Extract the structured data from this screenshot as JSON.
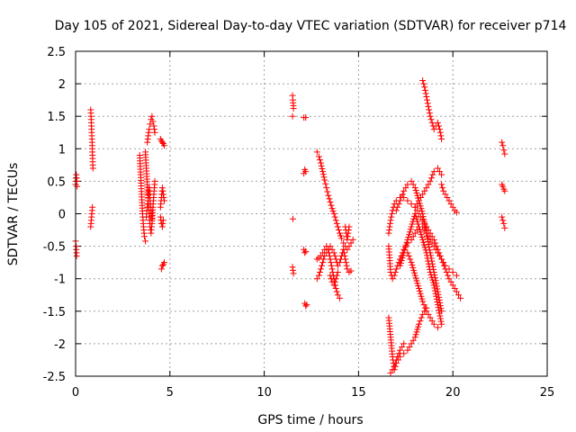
{
  "chart_data": {
    "type": "scatter",
    "title": "Day 105 of 2021, Sidereal Day-to-day VTEC variation (SDTVAR) for receiver p714",
    "xlabel": "GPS time / hours",
    "ylabel": "SDTVAR / TECUs",
    "xlim": [
      0,
      25
    ],
    "ylim": [
      -2.5,
      2.5
    ],
    "xticks": [
      0,
      5,
      10,
      15,
      20,
      25
    ],
    "yticks": [
      -2.5,
      -2,
      -1.5,
      -1,
      -0.5,
      0,
      0.5,
      1,
      1.5,
      2,
      2.5
    ],
    "grid": true,
    "marker": "+",
    "color": "#ff0000",
    "segments": [
      {
        "x": [
          0.0,
          0.02,
          0.04,
          0.06,
          0.08
        ],
        "y": [
          0.45,
          0.55,
          0.6,
          0.5,
          0.42
        ]
      },
      {
        "x": [
          0.0,
          0.03,
          0.06
        ],
        "y": [
          -0.42,
          -0.5,
          -0.65
        ]
      },
      {
        "x": [
          0.8,
          0.82,
          0.84,
          0.86,
          0.88,
          0.9,
          0.92
        ],
        "y": [
          1.6,
          1.5,
          1.35,
          1.2,
          1.05,
          0.85,
          0.7
        ]
      },
      {
        "x": [
          0.8,
          0.83,
          0.86,
          0.89
        ],
        "y": [
          -0.2,
          -0.1,
          0.0,
          0.1
        ]
      },
      {
        "x": [
          3.4,
          3.45,
          3.5,
          3.55,
          3.6,
          3.65,
          3.7
        ],
        "y": [
          0.9,
          0.6,
          0.3,
          0.0,
          -0.2,
          -0.35,
          -0.42
        ]
      },
      {
        "x": [
          3.7,
          3.75,
          3.8,
          3.85,
          3.9,
          3.95,
          4.0,
          4.05,
          4.1,
          4.15,
          4.2
        ],
        "y": [
          0.95,
          0.7,
          0.45,
          0.2,
          0.0,
          -0.2,
          -0.3,
          -0.15,
          0.1,
          0.3,
          0.5
        ]
      },
      {
        "x": [
          3.8,
          3.85,
          3.9,
          3.95,
          4.0,
          4.05,
          4.1,
          4.15,
          4.2
        ],
        "y": [
          1.1,
          1.2,
          1.3,
          1.38,
          1.45,
          1.5,
          1.42,
          1.35,
          1.25
        ]
      },
      {
        "x": [
          3.75,
          3.8,
          3.85,
          3.9,
          3.95,
          4.0,
          4.05
        ],
        "y": [
          -0.05,
          0.1,
          0.25,
          0.4,
          0.2,
          0.05,
          -0.08
        ]
      },
      {
        "x": [
          4.5,
          4.55,
          4.6,
          4.65,
          4.7
        ],
        "y": [
          1.15,
          1.12,
          1.1,
          1.08,
          1.05
        ]
      },
      {
        "x": [
          4.5,
          4.55,
          4.6,
          4.65,
          4.7
        ],
        "y": [
          0.1,
          0.25,
          0.4,
          0.3,
          0.2
        ]
      },
      {
        "x": [
          4.5,
          4.55,
          4.6,
          4.65
        ],
        "y": [
          -0.05,
          -0.15,
          -0.2,
          -0.1
        ]
      },
      {
        "x": [
          4.55,
          4.6,
          4.65,
          4.7
        ],
        "y": [
          -0.85,
          -0.8,
          -0.78,
          -0.75
        ]
      },
      {
        "x": [
          11.5,
          11.52,
          11.55
        ],
        "y": [
          1.82,
          1.75,
          1.62
        ]
      },
      {
        "x": [
          11.5
        ],
        "y": [
          1.5
        ]
      },
      {
        "x": [
          11.52
        ],
        "y": [
          -0.08
        ]
      },
      {
        "x": [
          11.5,
          11.55
        ],
        "y": [
          -0.82,
          -0.92
        ]
      },
      {
        "x": [
          12.1,
          12.2
        ],
        "y": [
          1.48,
          1.48
        ]
      },
      {
        "x": [
          12.1,
          12.15,
          12.2
        ],
        "y": [
          0.62,
          0.68,
          0.65
        ]
      },
      {
        "x": [
          12.1,
          12.15,
          12.2
        ],
        "y": [
          -0.55,
          -0.6,
          -0.58
        ]
      },
      {
        "x": [
          12.15,
          12.2,
          12.25
        ],
        "y": [
          -1.38,
          -1.42,
          -1.4
        ]
      },
      {
        "x": [
          12.8,
          12.9,
          13.0,
          13.1,
          13.2,
          13.3,
          13.4,
          13.5,
          13.6,
          13.7,
          13.8,
          13.9,
          14.0,
          14.1,
          14.2,
          14.3,
          14.4,
          14.5,
          14.6,
          14.7
        ],
        "y": [
          0.95,
          0.88,
          0.78,
          0.65,
          0.52,
          0.4,
          0.28,
          0.18,
          0.08,
          0.0,
          -0.1,
          -0.2,
          -0.3,
          -0.38,
          -0.45,
          -0.5,
          -0.55,
          -0.5,
          -0.45,
          -0.4
        ]
      },
      {
        "x": [
          12.8,
          12.9,
          13.0,
          13.1,
          13.2,
          13.3,
          13.4,
          13.5,
          13.6,
          13.7,
          13.8,
          13.9,
          14.0,
          14.1,
          14.2,
          14.3,
          14.4,
          14.5,
          14.6
        ],
        "y": [
          -1.0,
          -0.95,
          -0.85,
          -0.75,
          -0.65,
          -0.6,
          -0.55,
          -0.5,
          -0.55,
          -0.6,
          -0.7,
          -0.8,
          -0.75,
          -0.65,
          -0.55,
          -0.7,
          -0.85,
          -0.9,
          -0.88
        ]
      },
      {
        "x": [
          12.8,
          12.9,
          13.0,
          13.1,
          13.2,
          13.3
        ],
        "y": [
          -0.7,
          -0.68,
          -0.65,
          -0.6,
          -0.55,
          -0.5
        ]
      },
      {
        "x": [
          13.4,
          13.5,
          13.6,
          13.7,
          13.8,
          13.9,
          14.0
        ],
        "y": [
          -0.55,
          -0.7,
          -0.85,
          -1.0,
          -1.15,
          -1.25,
          -1.3
        ]
      },
      {
        "x": [
          13.5,
          13.6,
          13.7,
          13.8,
          13.9
        ],
        "y": [
          -0.95,
          -1.05,
          -1.1,
          -1.0,
          -0.9
        ]
      },
      {
        "x": [
          14.3,
          14.35,
          14.4,
          14.45,
          14.5
        ],
        "y": [
          -0.2,
          -0.3,
          -0.4,
          -0.3,
          -0.2
        ]
      },
      {
        "x": [
          16.6,
          16.7,
          16.8,
          16.9,
          17.0,
          17.2,
          17.4,
          17.6,
          17.8,
          18.0,
          18.2,
          18.4,
          18.6,
          18.8,
          19.0,
          19.2,
          19.4,
          19.6,
          19.8,
          20.0,
          20.2
        ],
        "y": [
          -0.5,
          -0.9,
          -1.0,
          -0.95,
          -0.85,
          -0.7,
          -0.55,
          -0.45,
          -0.4,
          -0.3,
          -0.2,
          -0.2,
          -0.3,
          -0.4,
          -0.5,
          -0.6,
          -0.7,
          -0.8,
          -0.85,
          -0.9,
          -0.95
        ]
      },
      {
        "x": [
          16.6,
          16.7,
          16.8,
          16.9,
          17.0,
          17.2,
          17.4,
          17.6,
          17.8,
          18.0,
          18.2,
          18.4,
          18.6,
          18.8,
          19.0,
          19.2,
          19.4,
          19.6,
          19.8,
          20.0,
          20.2,
          20.4
        ],
        "y": [
          -0.3,
          -0.1,
          0.05,
          0.15,
          0.2,
          0.25,
          0.25,
          0.2,
          0.15,
          0.1,
          0.0,
          -0.1,
          -0.2,
          -0.3,
          -0.4,
          -0.55,
          -0.7,
          -0.85,
          -1.0,
          -1.1,
          -1.2,
          -1.3
        ]
      },
      {
        "x": [
          16.6,
          16.7,
          16.8,
          16.9,
          17.0,
          17.2,
          17.4,
          17.6,
          17.8,
          18.0,
          18.2,
          18.4,
          18.6
        ],
        "y": [
          -1.6,
          -1.9,
          -2.2,
          -2.4,
          -2.3,
          -2.2,
          -2.15,
          -2.1,
          -2.0,
          -1.9,
          -1.7,
          -1.55,
          -1.45
        ]
      },
      {
        "x": [
          16.7,
          16.8,
          16.9,
          17.0,
          17.2,
          17.4
        ],
        "y": [
          -2.45,
          -2.4,
          -2.35,
          -2.25,
          -2.1,
          -2.0
        ]
      },
      {
        "x": [
          17.0,
          17.2,
          17.4,
          17.6,
          17.8,
          18.0,
          18.2,
          18.4,
          18.6,
          18.8,
          19.0,
          19.2,
          19.4
        ],
        "y": [
          0.05,
          0.2,
          0.35,
          0.45,
          0.5,
          0.4,
          0.2,
          0.0,
          -0.3,
          -0.6,
          -0.9,
          -1.2,
          -1.5
        ]
      },
      {
        "x": [
          17.2,
          17.4,
          17.6,
          17.8,
          18.0,
          18.2,
          18.4,
          18.6,
          18.8,
          19.0,
          19.2,
          19.4
        ],
        "y": [
          -0.8,
          -0.6,
          -0.4,
          -0.2,
          0.0,
          -0.2,
          -0.4,
          -0.6,
          -0.9,
          -1.1,
          -1.4,
          -1.7
        ]
      },
      {
        "x": [
          17.6,
          17.8,
          18.0,
          18.2,
          18.4,
          18.6,
          18.8,
          19.0,
          19.2
        ],
        "y": [
          -0.6,
          -0.75,
          -0.95,
          -1.15,
          -1.35,
          -1.5,
          -1.6,
          -1.7,
          -1.75
        ]
      },
      {
        "x": [
          18.4,
          18.5,
          18.6,
          18.7,
          18.8,
          18.9,
          19.0,
          19.1,
          19.2,
          19.3,
          19.4
        ],
        "y": [
          2.05,
          1.95,
          1.8,
          1.65,
          1.5,
          1.4,
          1.3,
          1.35,
          1.4,
          1.3,
          1.15
        ]
      },
      {
        "x": [
          18.0,
          18.2,
          18.4,
          18.6,
          18.8,
          19.0,
          19.2,
          19.4
        ],
        "y": [
          0.1,
          0.2,
          0.3,
          0.4,
          0.5,
          0.65,
          0.7,
          0.6
        ]
      },
      {
        "x": [
          19.4,
          19.5,
          19.6,
          19.7,
          19.8,
          19.9,
          20.0,
          20.1,
          20.2
        ],
        "y": [
          0.45,
          0.35,
          0.3,
          0.25,
          0.2,
          0.15,
          0.1,
          0.05,
          0.02
        ]
      },
      {
        "x": [
          22.6,
          22.65,
          22.7,
          22.75
        ],
        "y": [
          1.1,
          1.05,
          0.98,
          0.92
        ]
      },
      {
        "x": [
          22.6,
          22.65,
          22.7,
          22.75
        ],
        "y": [
          0.45,
          0.42,
          0.38,
          0.35
        ]
      },
      {
        "x": [
          22.6,
          22.65,
          22.7,
          22.75
        ],
        "y": [
          -0.05,
          -0.1,
          -0.15,
          -0.22
        ]
      }
    ]
  }
}
